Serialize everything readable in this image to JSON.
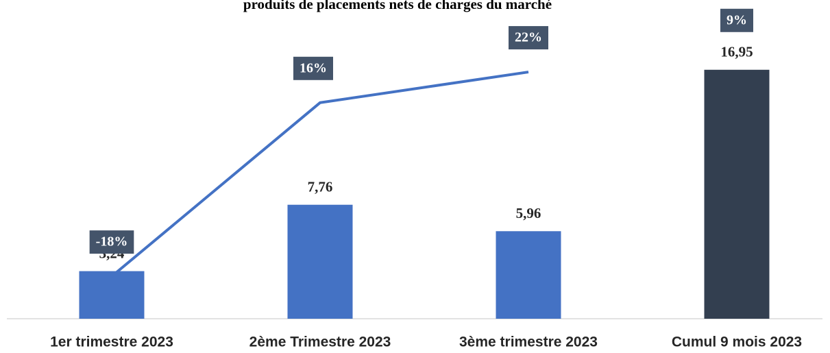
{
  "chart_data": {
    "type": "bar",
    "title": "produits de placements nets de charges du marché",
    "categories": [
      "1er trimestre 2023",
      "2ème Trimestre 2023",
      "3ème trimestre 2023",
      "Cumul 9 mois 2023"
    ],
    "ylim": [
      0,
      21.7
    ],
    "y2lim": [
      -26.3,
      36.1
    ],
    "series": [
      {
        "type": "bar",
        "colors": [
          "#4472c4",
          "#4472c4",
          "#4472c4",
          "#333f50"
        ],
        "values": [
          3.24,
          7.76,
          5.96,
          16.95
        ],
        "value_labels": [
          "3,24",
          "7,76",
          "5,96",
          "16,95"
        ]
      },
      {
        "type": "line",
        "axis": "y2",
        "color": "#4472c4",
        "values": [
          -18,
          16,
          22,
          null
        ],
        "value_labels": [
          "-18%",
          "16%",
          "22%",
          null
        ]
      }
    ],
    "annotation": {
      "value": 9,
      "label": "9%"
    }
  }
}
